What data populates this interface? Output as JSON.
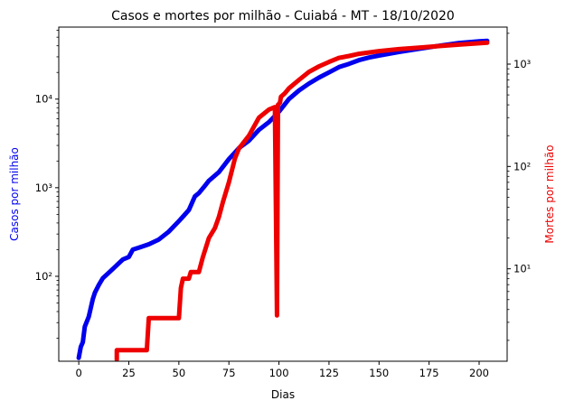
{
  "chart_data": {
    "type": "line",
    "title": "Casos e mortes por milhão - Cuiabá - MT - 18/10/2020",
    "xlabel": "Dias",
    "ylabel_left": "Casos por milhão",
    "ylabel_right": "Mortes por milhão",
    "xlim": [
      -10,
      214
    ],
    "ylim_left": [
      11,
      65000
    ],
    "ylim_right": [
      1.25,
      2300
    ],
    "yscale_left": "log",
    "yscale_right": "log",
    "grid": false,
    "x_ticks": [
      0,
      25,
      50,
      75,
      100,
      125,
      150,
      175,
      200
    ],
    "x_tick_labels": [
      "0",
      "25",
      "50",
      "75",
      "100",
      "125",
      "150",
      "175",
      "200"
    ],
    "y_left_ticks": [
      100,
      1000,
      10000
    ],
    "y_left_tick_labels": [
      "10²",
      "10³",
      "10⁴"
    ],
    "y_right_ticks": [
      10,
      100,
      1000
    ],
    "y_right_tick_labels": [
      "10¹",
      "10²",
      "10³"
    ],
    "colors": {
      "cases": "#0000ee",
      "deaths": "#ee0000"
    },
    "series": [
      {
        "axis": "left",
        "color": "#0000ee",
        "x": [
          0,
          1,
          2,
          3,
          5,
          7,
          8,
          10,
          12,
          15,
          20,
          22,
          25,
          27,
          30,
          35,
          40,
          45,
          50,
          52,
          55,
          58,
          60,
          63,
          65,
          70,
          75,
          80,
          85,
          90,
          95,
          100,
          105,
          110,
          115,
          120,
          125,
          130,
          135,
          140,
          145,
          150,
          160,
          170,
          180,
          190,
          200,
          204
        ],
        "y": [
          12,
          16,
          18,
          27,
          35,
          55,
          65,
          80,
          95,
          110,
          140,
          155,
          165,
          200,
          210,
          230,
          260,
          320,
          420,
          470,
          560,
          800,
          870,
          1050,
          1200,
          1500,
          2100,
          2800,
          3400,
          4500,
          5500,
          7200,
          10000,
          12500,
          15000,
          17500,
          20000,
          23000,
          25000,
          27500,
          29500,
          31000,
          34000,
          37000,
          40000,
          43000,
          45000,
          45500
        ]
      },
      {
        "axis": "right",
        "color": "#ee0000",
        "x": [
          19,
          19,
          20,
          34,
          35,
          50,
          51,
          52,
          55,
          56,
          60,
          62,
          65,
          68,
          70,
          72,
          75,
          78,
          80,
          85,
          90,
          95,
          98,
          99,
          99.5,
          100,
          100.5,
          101,
          103,
          105,
          110,
          115,
          120,
          125,
          130,
          135,
          140,
          145,
          150,
          160,
          170,
          180,
          190,
          200,
          204
        ],
        "y": [
          1.3,
          1.6,
          1.6,
          1.6,
          3.3,
          3.3,
          6.5,
          8,
          8,
          9.3,
          9.3,
          13,
          20,
          25,
          32,
          45,
          70,
          120,
          150,
          200,
          300,
          360,
          380,
          3.5,
          400,
          410,
          420,
          480,
          520,
          580,
          700,
          840,
          950,
          1050,
          1150,
          1200,
          1260,
          1300,
          1340,
          1400,
          1450,
          1500,
          1550,
          1600,
          1620
        ]
      }
    ]
  }
}
